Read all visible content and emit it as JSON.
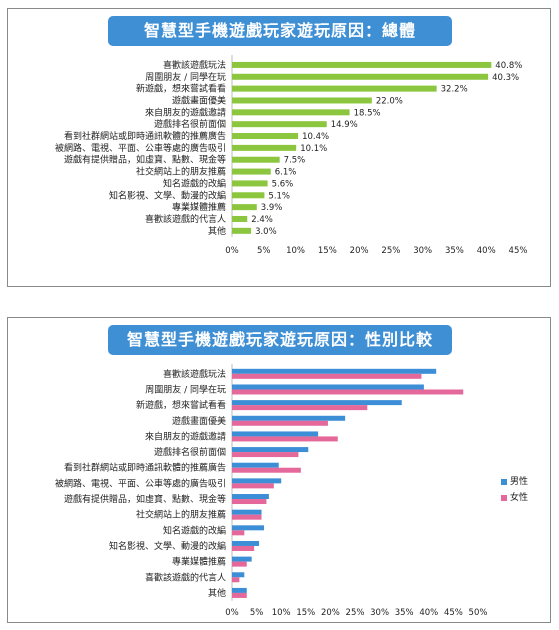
{
  "chart_data": [
    {
      "type": "bar",
      "orientation": "horizontal",
      "title": "智慧型手機遊戲玩家遊玩原因：總體",
      "categories": [
        "喜歡該遊戲玩法",
        "周圍朋友 / 同學在玩",
        "新遊戲，想來嘗試看看",
        "遊戲畫面優美",
        "來自朋友的遊戲邀請",
        "遊戲排名很前面個",
        "看到社群網站或即時通訊軟體的推薦廣告",
        "被網路、電視、平面、公車等處的廣告吸引",
        "遊戲有提供贈品，如虛寶、點數、現金等",
        "社交網站上的朋友推薦",
        "知名遊戲的改編",
        "知名影視、文學、動漫的改編",
        "專業媒體推薦",
        "喜歡該遊戲的代言人",
        "其他"
      ],
      "values": [
        40.8,
        40.3,
        32.2,
        22.0,
        18.5,
        14.9,
        10.4,
        10.1,
        7.5,
        6.1,
        5.6,
        5.1,
        3.9,
        2.4,
        3.0
      ],
      "value_labels": [
        "40.8%",
        "40.3%",
        "32.2%",
        "22.0%",
        "18.5%",
        "14.9%",
        "10.4%",
        "10.1%",
        "7.5%",
        "6.1%",
        "5.6%",
        "5.1%",
        "3.9%",
        "2.4%",
        "3.0%"
      ],
      "xticks": [
        "0%",
        "5%",
        "10%",
        "15%",
        "20%",
        "25%",
        "30%",
        "35%",
        "40%",
        "45%"
      ],
      "xlim": [
        0,
        45
      ],
      "color": "#8cc63f",
      "grid": false
    },
    {
      "type": "bar",
      "orientation": "horizontal",
      "title": "智慧型手機遊戲玩家遊玩原因：性別比較",
      "categories": [
        "喜歡該遊戲玩法",
        "周圍朋友 / 同學在玩",
        "新遊戲，想來嘗試看看",
        "遊戲畫面優美",
        "來自朋友的遊戲邀請",
        "遊戲排名很前面個",
        "看到社群網站或即時通訊軟體的推薦廣告",
        "被網路、電視、平面、公車等處的廣告吸引",
        "遊戲有提供贈品，如虛寶、點數、現金等",
        "社交網站上的朋友推薦",
        "知名遊戲的改編",
        "知名影視、文學、動漫的改編",
        "專業媒體推薦",
        "喜歡該遊戲的代言人",
        "其他"
      ],
      "series": [
        {
          "name": "男性",
          "color": "#3c8fd6",
          "values": [
            41.5,
            39.0,
            34.5,
            23.0,
            17.5,
            15.5,
            9.5,
            10.0,
            7.5,
            6.0,
            6.5,
            5.5,
            4.0,
            2.5,
            3.0
          ]
        },
        {
          "name": "女性",
          "color": "#e5689b",
          "values": [
            38.5,
            47.0,
            27.5,
            19.5,
            21.5,
            13.5,
            14.0,
            8.5,
            7.0,
            6.0,
            2.5,
            4.5,
            3.0,
            1.5,
            3.0
          ]
        }
      ],
      "xticks": [
        "0%",
        "5%",
        "10%",
        "15%",
        "20%",
        "25%",
        "30%",
        "35%",
        "40%",
        "45%",
        "50%"
      ],
      "xlim": [
        0,
        50
      ],
      "legend_position": "right",
      "grid": false
    }
  ]
}
